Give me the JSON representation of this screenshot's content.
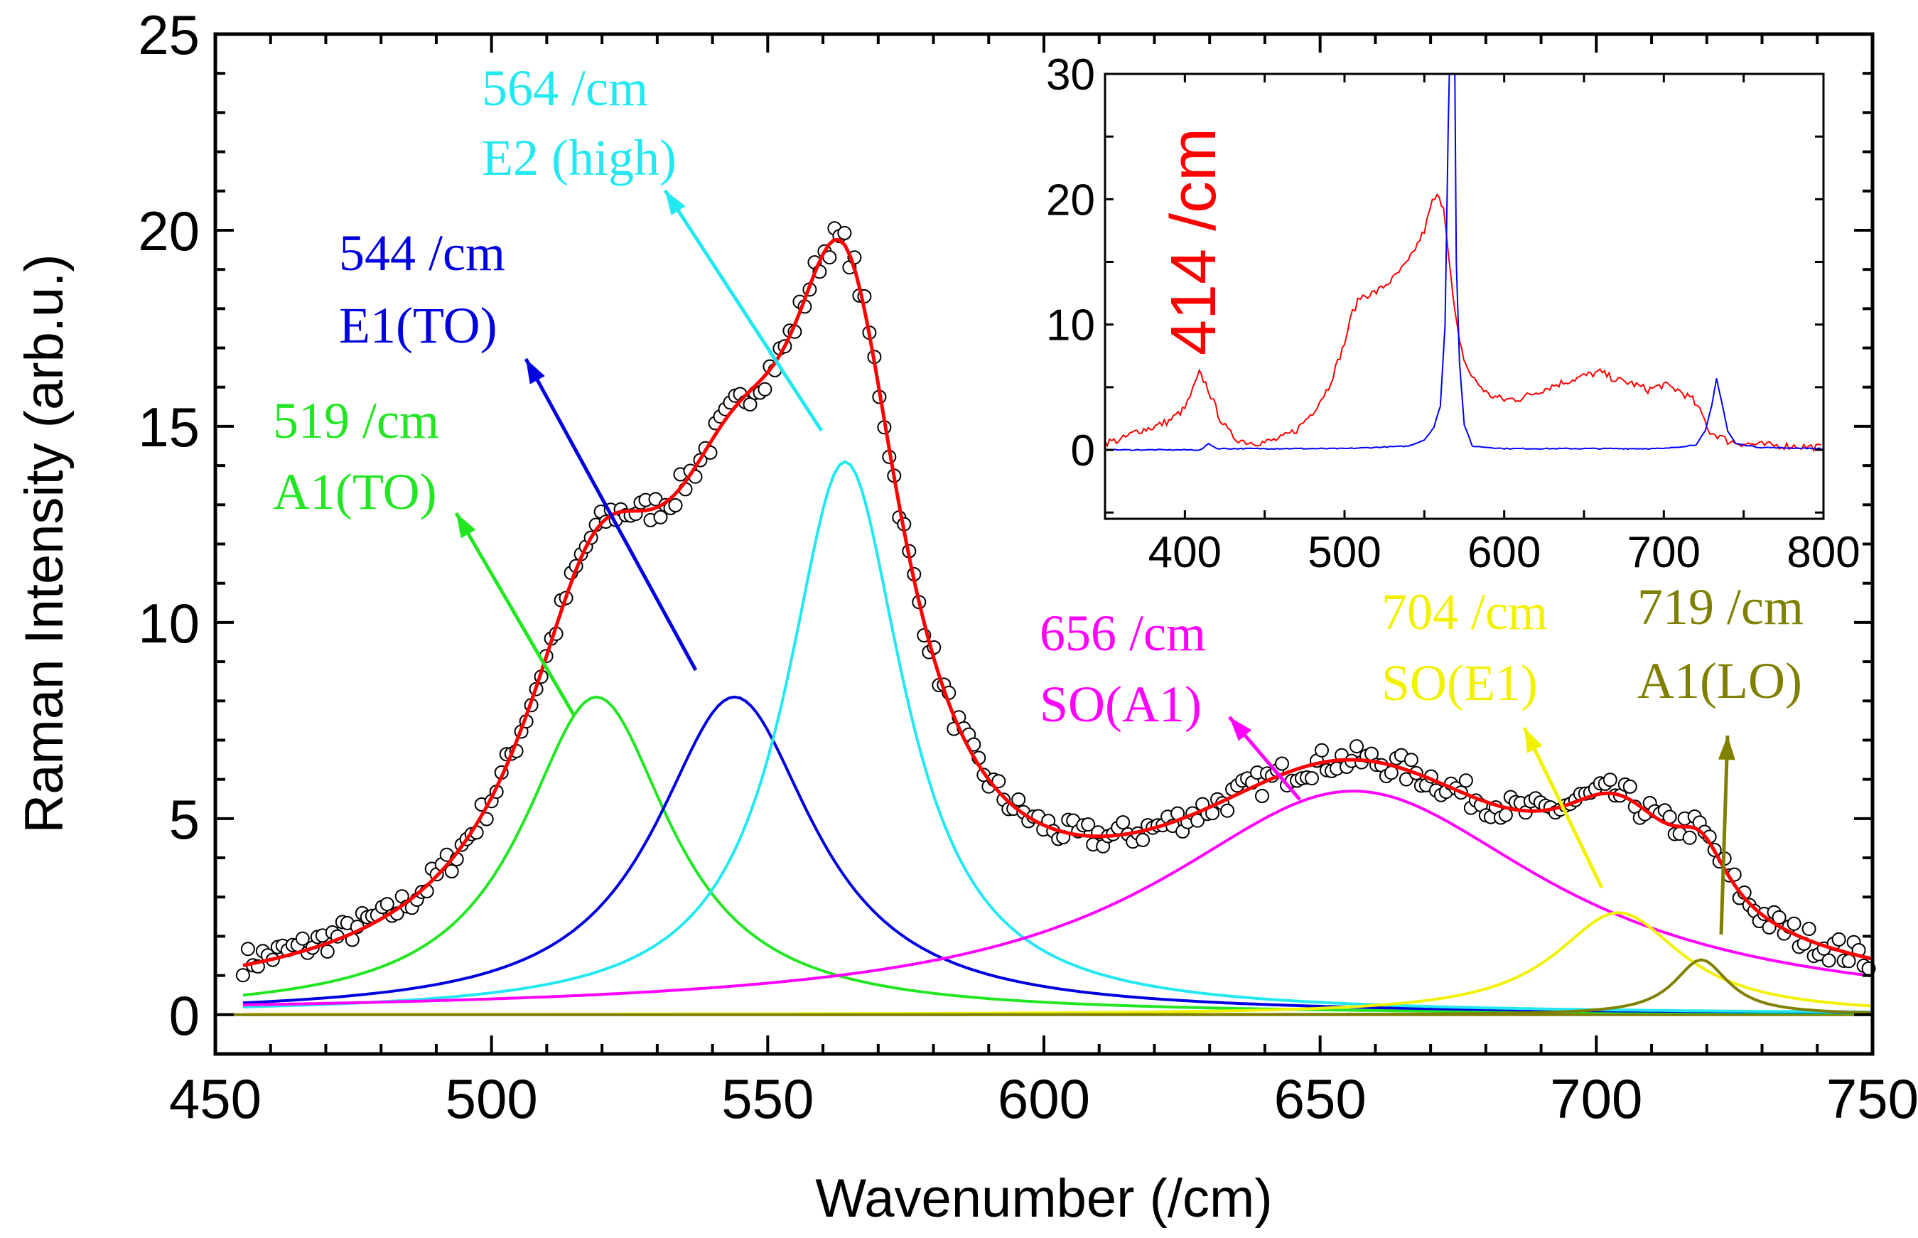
{
  "chart_data": [
    {
      "type": "line",
      "title": "",
      "xlabel": "Wavenumber (/cm)",
      "ylabel": "Raman Intensity (arb.u.)",
      "xlim": [
        450,
        750
      ],
      "ylim": [
        -1,
        25
      ],
      "xticks": [
        450,
        500,
        550,
        600,
        650,
        700,
        750
      ],
      "yticks": [
        0,
        5,
        10,
        15,
        20,
        25
      ],
      "grid": false,
      "fit_model": "sum of Lorentzian peaks",
      "fit_color": "#ff0000",
      "data_marker": "open-circle",
      "data_range": [
        455,
        750
      ],
      "components": [
        {
          "name": "A1(TO)",
          "center": 519,
          "height": 8.1,
          "hwhm": 16.4,
          "color": "#22e622",
          "label_wn": "519 /cm",
          "label_mode": "A1(TO)"
        },
        {
          "name": "E1(TO)",
          "center": 544,
          "height": 8.1,
          "hwhm": 17.5,
          "color": "#0000e0",
          "label_wn": "544 /cm",
          "label_mode": "E1(TO)"
        },
        {
          "name": "E2 (high)",
          "center": 564,
          "height": 14.1,
          "hwhm": 13,
          "color": "#22e8f2",
          "label_wn": "564 /cm",
          "label_mode": "E2 (high)"
        },
        {
          "name": "SO(A1)",
          "center": 656,
          "height": 5.7,
          "hwhm": 43,
          "color": "#ff00ff",
          "label_wn": "656 /cm",
          "label_mode": "SO(A1)"
        },
        {
          "name": "SO(E1)",
          "center": 704,
          "height": 2.6,
          "hwhm": 14,
          "color": "#f2f200",
          "label_wn": "704 /cm",
          "label_mode": "SO(E1)"
        },
        {
          "name": "A1(LO)",
          "center": 719,
          "height": 1.4,
          "hwhm": 6,
          "color": "#808000",
          "label_wn": "719 /cm",
          "label_mode": "A1(LO)"
        }
      ]
    },
    {
      "type": "line",
      "title": "inset",
      "annotation": "414 /cm",
      "annotation_color": "#ff0000",
      "xlim": [
        350,
        800
      ],
      "ylim": [
        -5.5,
        30
      ],
      "xticks": [
        400,
        500,
        600,
        700,
        800
      ],
      "yticks": [
        0,
        10,
        20,
        30
      ],
      "series": [
        {
          "name": "red spectrum",
          "color": "#ff0000",
          "x": [
            350,
            360,
            370,
            380,
            390,
            400,
            405,
            409,
            413,
            418,
            422,
            427,
            432,
            440,
            450,
            460,
            470,
            480,
            490,
            500,
            505,
            510,
            520,
            530,
            540,
            550,
            555,
            558,
            562,
            565,
            568,
            572,
            576,
            580,
            590,
            600,
            610,
            620,
            630,
            640,
            650,
            660,
            670,
            680,
            690,
            700,
            710,
            718,
            724,
            729,
            735,
            740,
            750,
            760,
            780,
            800
          ],
          "y": [
            0.6,
            0.8,
            1.5,
            1.8,
            2.3,
            3.3,
            4.8,
            6.1,
            5.3,
            3.8,
            2.5,
            1.5,
            0.9,
            0.6,
            0.6,
            0.9,
            1.6,
            3.0,
            5.0,
            8.5,
            11,
            12.2,
            12.6,
            13.6,
            15.0,
            17.5,
            19.8,
            20.2,
            19.5,
            16,
            12,
            8.5,
            6.8,
            5.8,
            4.4,
            4.0,
            4.1,
            4.6,
            5.1,
            5.5,
            5.9,
            6.2,
            5.6,
            5.3,
            4.8,
            5.2,
            4.7,
            4.0,
            2.8,
            1.4,
            1.1,
            0.7,
            0.5,
            0.4,
            0.3,
            0.2
          ]
        },
        {
          "name": "blue spectrum",
          "color": "#0000ff",
          "x": [
            350,
            410,
            415,
            420,
            500,
            540,
            550,
            556,
            560,
            563,
            565,
            566,
            569,
            570,
            572,
            575,
            580,
            600,
            700,
            720,
            726,
            730,
            733,
            736,
            740,
            745,
            760,
            800
          ],
          "y": [
            0,
            0,
            0.5,
            0.1,
            0.1,
            0.3,
            0.8,
            1.8,
            3.5,
            10,
            26,
            32,
            32,
            15,
            7,
            2,
            0.3,
            0.1,
            0.1,
            0.4,
            1.5,
            3.5,
            5.7,
            4,
            1.5,
            0.5,
            0.2,
            0.1
          ]
        }
      ]
    }
  ]
}
